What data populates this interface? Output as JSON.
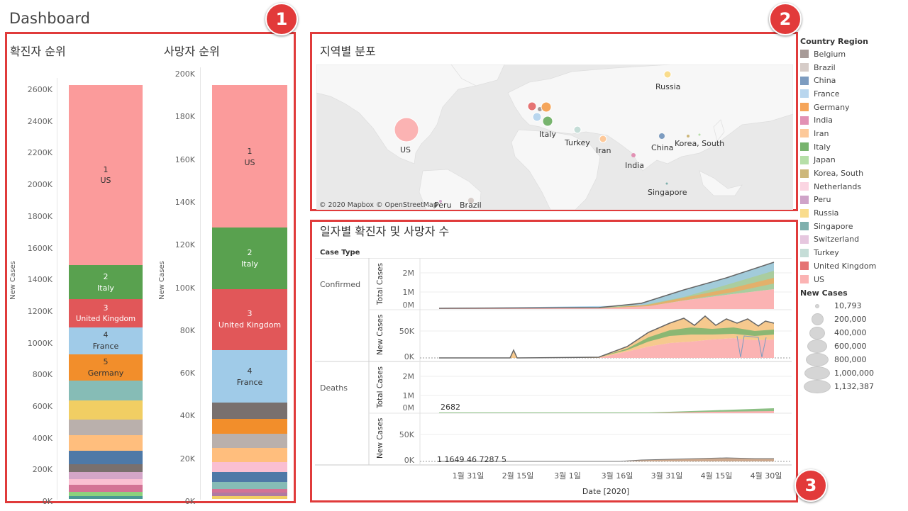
{
  "header": {
    "title": "Dashboard"
  },
  "badges": [
    "1",
    "2",
    "3"
  ],
  "confirmed_rank": {
    "title": "확진자 순위",
    "ylabel": "New Cases",
    "ticks": [
      "2600K",
      "2400K",
      "2200K",
      "2000K",
      "1800K",
      "1600K",
      "1400K",
      "1200K",
      "1000K",
      "800K",
      "600K",
      "400K",
      "200K",
      "0K"
    ],
    "labels": [
      {
        "rank": "1",
        "country": "US"
      },
      {
        "rank": "2",
        "country": "Italy"
      },
      {
        "rank": "3",
        "country": "United Kingdom"
      },
      {
        "rank": "4",
        "country": "France"
      },
      {
        "rank": "5",
        "country": "Germany"
      }
    ]
  },
  "death_rank": {
    "title": "사망자 순위",
    "ylabel": "New Cases",
    "ticks": [
      "200K",
      "180K",
      "160K",
      "140K",
      "120K",
      "100K",
      "80K",
      "60K",
      "40K",
      "20K",
      "0K"
    ],
    "labels": [
      {
        "rank": "1",
        "country": "US"
      },
      {
        "rank": "2",
        "country": "Italy"
      },
      {
        "rank": "3",
        "country": "United Kingdom"
      },
      {
        "rank": "4",
        "country": "France"
      }
    ]
  },
  "map": {
    "title": "지역별 분포",
    "copyright": "© 2020 Mapbox © OpenStreetMap",
    "labels": [
      "Russia",
      "US",
      "Italy",
      "Turkey",
      "Iran",
      "China",
      "Korea, South",
      "India",
      "Singapore",
      "Brazil",
      "Peru"
    ]
  },
  "timeline": {
    "title": "일자별 확진자 및 사망자 수",
    "case_type_header": "Case Type",
    "rows": [
      "Confirmed",
      "Deaths"
    ],
    "measure_total": "Total Cases",
    "measure_new": "New Cases",
    "total_ticks": [
      "2M",
      "1M",
      "0M"
    ],
    "new_ticks": [
      "50K",
      "0K"
    ],
    "annotations": {
      "deaths_total": "2682",
      "deaths_new": "1 1649 46 7287 5"
    },
    "x_ticks": [
      "1월 31일",
      "2월 15일",
      "3월 1일",
      "3월 16일",
      "3월 31일",
      "4월 15일",
      "4월 30일"
    ],
    "xlabel": "Date [2020]"
  },
  "legend": {
    "country_title": "Country Region",
    "countries": [
      {
        "name": "Belgium",
        "color": "#a79a97"
      },
      {
        "name": "Brazil",
        "color": "#d6ccc8"
      },
      {
        "name": "China",
        "color": "#7d9cc0"
      },
      {
        "name": "France",
        "color": "#b9d6ee"
      },
      {
        "name": "Germany",
        "color": "#f5a55a"
      },
      {
        "name": "India",
        "color": "#e291b4"
      },
      {
        "name": "Iran",
        "color": "#fdc99a"
      },
      {
        "name": "Italy",
        "color": "#78b46e"
      },
      {
        "name": "Japan",
        "color": "#b6dfa8"
      },
      {
        "name": "Korea, South",
        "color": "#cdb77a"
      },
      {
        "name": "Netherlands",
        "color": "#fbd5e2"
      },
      {
        "name": "Peru",
        "color": "#cfa3c8"
      },
      {
        "name": "Russia",
        "color": "#f9dc8c"
      },
      {
        "name": "Singapore",
        "color": "#7fb0ad"
      },
      {
        "name": "Switzerland",
        "color": "#e6c7df"
      },
      {
        "name": "Turkey",
        "color": "#c5ddd7"
      },
      {
        "name": "United Kingdom",
        "color": "#e57373"
      },
      {
        "name": "US",
        "color": "#fbb3b3"
      }
    ],
    "size_title": "New Cases",
    "sizes": [
      "10,793",
      "200,000",
      "400,000",
      "600,000",
      "800,000",
      "1,000,000",
      "1,132,387"
    ]
  }
}
